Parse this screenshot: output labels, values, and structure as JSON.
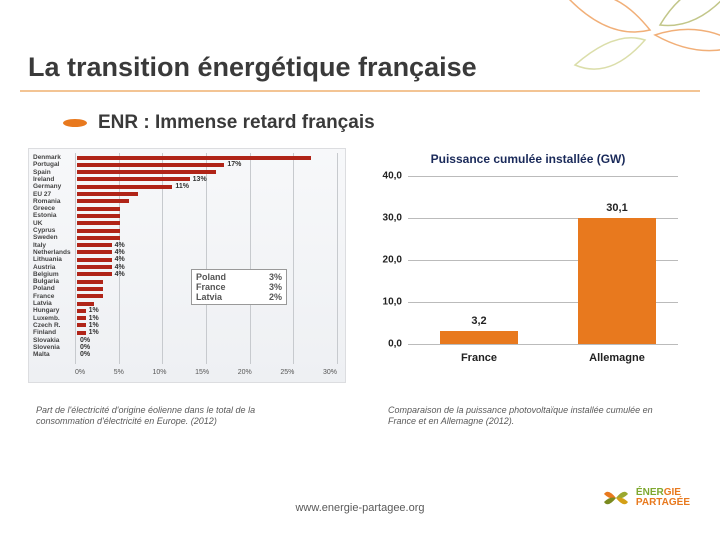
{
  "title": "La transition énergétique française",
  "subtitle": "ENR : Immense retard français",
  "bullet_color": "#e8791e",
  "left_chart": {
    "type": "bar",
    "orientation": "horizontal",
    "bar_color": "#b02418",
    "background": "linear-gradient(#f7f8fa,#eef0f3)",
    "xlim": [
      0,
      30
    ],
    "xticks": [
      "0%",
      "5%",
      "10%",
      "15%",
      "20%",
      "25%",
      "30%"
    ],
    "grid_color": "#c7cace",
    "label_fontsize": 6.5,
    "rows": [
      {
        "label": "Denmark",
        "value": 27,
        "show_pct": ""
      },
      {
        "label": "Portugal",
        "value": 17,
        "show_pct": "17%"
      },
      {
        "label": "Spain",
        "value": 16,
        "show_pct": ""
      },
      {
        "label": "Ireland",
        "value": 13,
        "show_pct": "13%"
      },
      {
        "label": "Germany",
        "value": 11,
        "show_pct": "11%"
      },
      {
        "label": "EU 27",
        "value": 7,
        "show_pct": ""
      },
      {
        "label": "Romania",
        "value": 6,
        "show_pct": ""
      },
      {
        "label": "Greece",
        "value": 5,
        "show_pct": ""
      },
      {
        "label": "Estonia",
        "value": 5,
        "show_pct": ""
      },
      {
        "label": "UK",
        "value": 5,
        "show_pct": ""
      },
      {
        "label": "Cyprus",
        "value": 5,
        "show_pct": ""
      },
      {
        "label": "Sweden",
        "value": 5,
        "show_pct": ""
      },
      {
        "label": "Italy",
        "value": 4,
        "show_pct": "4%"
      },
      {
        "label": "Netherlands",
        "value": 4,
        "show_pct": "4%"
      },
      {
        "label": "Lithuania",
        "value": 4,
        "show_pct": "4%"
      },
      {
        "label": "Austria",
        "value": 4,
        "show_pct": "4%"
      },
      {
        "label": "Belgium",
        "value": 4,
        "show_pct": "4%"
      },
      {
        "label": "Bulgaria",
        "value": 3,
        "show_pct": ""
      },
      {
        "label": "Poland",
        "value": 3,
        "show_pct": ""
      },
      {
        "label": "France",
        "value": 3,
        "show_pct": ""
      },
      {
        "label": "Latvia",
        "value": 2,
        "show_pct": ""
      },
      {
        "label": "Hungary",
        "value": 1,
        "show_pct": "1%"
      },
      {
        "label": "Luxemb.",
        "value": 1,
        "show_pct": "1%"
      },
      {
        "label": "Czech R.",
        "value": 1,
        "show_pct": "1%"
      },
      {
        "label": "Finland",
        "value": 1,
        "show_pct": "1%"
      },
      {
        "label": "Slovakia",
        "value": 0,
        "show_pct": "0%"
      },
      {
        "label": "Slovenia",
        "value": 0,
        "show_pct": "0%"
      },
      {
        "label": "Malta",
        "value": 0,
        "show_pct": "0%"
      }
    ],
    "callout": [
      {
        "name": "Poland",
        "pct": "3%"
      },
      {
        "name": "France",
        "pct": "3%"
      },
      {
        "name": "Latvia",
        "pct": "2%"
      }
    ]
  },
  "right_chart": {
    "type": "bar",
    "title": "Puissance cumulée installée (GW)",
    "title_color": "#1a2a5a",
    "title_fontsize": 12,
    "bar_color": "#e8791e",
    "grid_color": "#bbbbbb",
    "ylim": [
      0,
      40
    ],
    "yticks": [
      "0,0",
      "10,0",
      "20,0",
      "30,0",
      "40,0"
    ],
    "categories": [
      "France",
      "Allemagne"
    ],
    "values": [
      3.2,
      30.1
    ],
    "value_labels": [
      "3,2",
      "30,1"
    ],
    "label_fontsize": 11
  },
  "caption_left": "Part de l'électricité d'origine éolienne dans le total de la consommation d'électricité en Europe. (2012)",
  "caption_right": "Comparaison de la puissance photovoltaïque installée cumulée en France et en Allemagne (2012).",
  "footer_url": "www.energie-partagee.org",
  "logo": {
    "line1_a": "ÉNER",
    "line1_b": "GIE",
    "line2": "PARTAGÉE"
  }
}
